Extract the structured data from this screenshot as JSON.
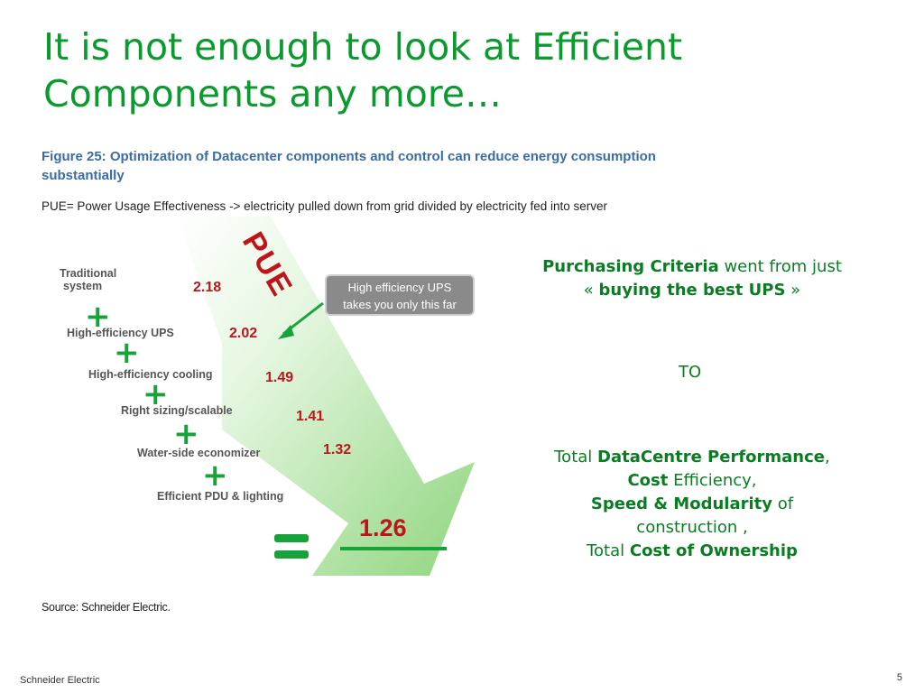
{
  "slide": {
    "title_line1": "It is not enough to look at Efficient",
    "title_line2": "Components any more…"
  },
  "figure": {
    "caption_line1": "Figure 25: Optimization of Datacenter components and control can reduce energy consumption",
    "caption_line2": "substantially",
    "pue_definition": "PUE= Power Usage Effectiveness -> electricity pulled down from grid divided by electricity fed into server",
    "pue_word": "PUE",
    "callout_line1": "High efficiency UPS",
    "callout_line2": "takes you only this far",
    "steps": [
      {
        "label_line1": "Traditional",
        "label_line2": "system",
        "pue": "2.18"
      },
      {
        "label_line1": "High-efficiency UPS",
        "pue": "2.02"
      },
      {
        "label_line1": "High-efficiency cooling",
        "pue": "1.49"
      },
      {
        "label_line1": "Right sizing/scalable",
        "pue": "1.41"
      },
      {
        "label_line1": "Water-side economizer",
        "pue": "1.32"
      },
      {
        "label_line1": "Efficient PDU &  lighting",
        "pue": "1.26"
      }
    ],
    "source": "Source: Schneider Electric.",
    "colors": {
      "arrow": "#9edc8f",
      "accent_green": "#18a33a",
      "pue_red": "#c0141c",
      "callout_gray": "#8a8a8a"
    }
  },
  "right_panel": {
    "purchasing_criteria": "Purchasing Criteria",
    "went_from_just": " went from just",
    "open_quote": "« ",
    "buying_best_ups": "buying the best UPS",
    "close_quote": " »",
    "to": "TO",
    "total1": "Total ",
    "datacentre_performance": "DataCentre Performance",
    "comma": ",",
    "cost": "Cost",
    "efficiency": " Efficiency,",
    "speed_modularity": "Speed & Modularity",
    "of": " of",
    "construction": "construction ,",
    "total2": "Total ",
    "cost_of_ownership": "Cost of Ownership"
  },
  "footer": {
    "company": "Schneider Electric",
    "page_number": "5"
  }
}
